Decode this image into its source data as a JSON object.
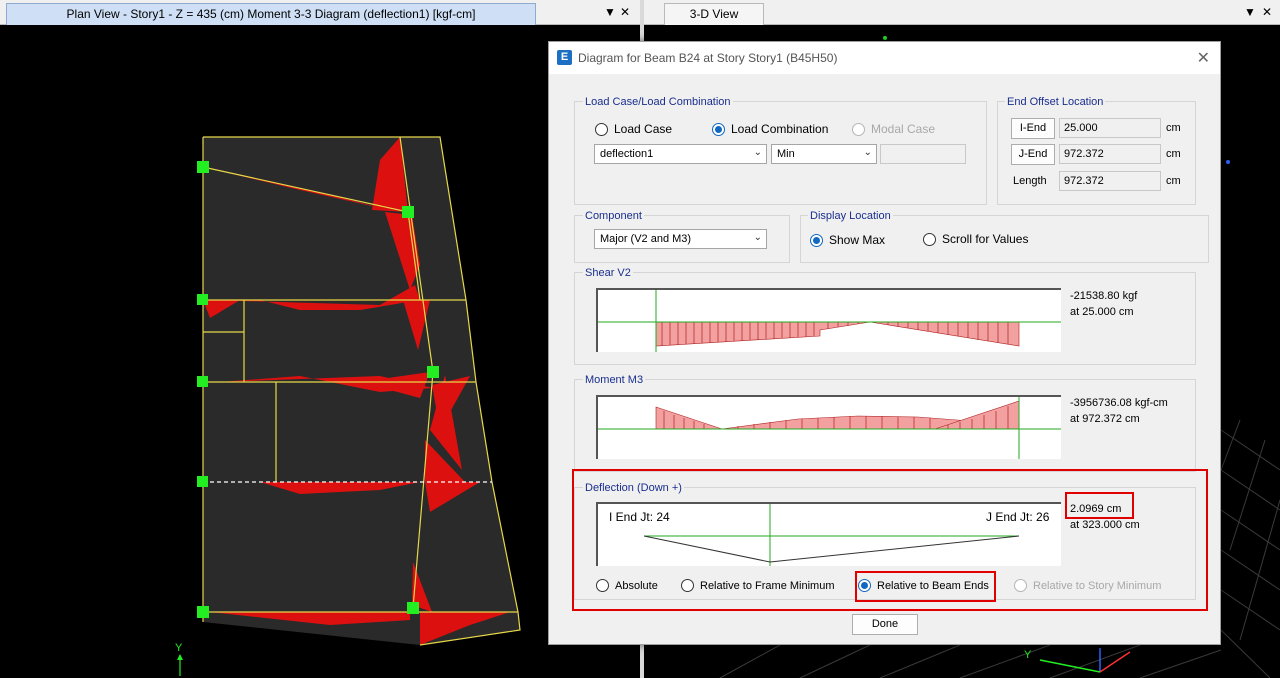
{
  "panes": {
    "plan": {
      "tab_title": "Plan View - Story1 - Z = 435 (cm)   Moment 3-3 Diagram   (deflection1)  [kgf-cm]",
      "axis_y": "Y"
    },
    "view3d": {
      "tab_title": "3-D View",
      "axis_y": "Y"
    },
    "dropdown_glyph": "▼",
    "close_glyph": "✕"
  },
  "dialog": {
    "app_icon": "E",
    "title": "Diagram for Beam B24 at Story Story1 (B45H50)",
    "close_glyph": "✕",
    "load_case": {
      "group_label": "Load Case/Load Combination",
      "options": [
        "Load Case",
        "Load Combination",
        "Modal Case"
      ],
      "selected": "Load Combination",
      "case_value": "deflection1",
      "extreme_value": "Min",
      "mode_value": ""
    },
    "end_offset": {
      "group_label": "End Offset Location",
      "i_end_label": "I-End",
      "i_end_value": "25.000",
      "j_end_label": "J-End",
      "j_end_value": "972.372",
      "length_label": "Length",
      "length_value": "972.372",
      "unit": "cm"
    },
    "component": {
      "group_label": "Component",
      "value": "Major (V2 and M3)"
    },
    "display_location": {
      "group_label": "Display Location",
      "options": [
        "Show Max",
        "Scroll for Values"
      ],
      "selected": "Show Max"
    },
    "shear": {
      "group_label": "Shear V2",
      "value": "-21538.80 kgf",
      "location": "at 25.000 cm"
    },
    "moment": {
      "group_label": "Moment M3",
      "value": "-3956736.08 kgf-cm",
      "location": "at 972.372 cm"
    },
    "deflection": {
      "group_label": "Deflection (Down +)",
      "i_end_label": "I End Jt: 24",
      "j_end_label": "J End Jt: 26",
      "value": "2.0969 cm",
      "location": "at 323.000 cm",
      "options": [
        "Absolute",
        "Relative to Frame Minimum",
        "Relative to Beam Ends",
        "Relative to Story Minimum"
      ],
      "selected": "Relative to Beam Ends"
    },
    "done_label": "Done"
  },
  "colors": {
    "highlight": "#e00000",
    "diagram_red": "#dd1010",
    "beam_line": "#e6d84a",
    "joint": "#22ee22",
    "accent_radio": "#1168c0"
  }
}
